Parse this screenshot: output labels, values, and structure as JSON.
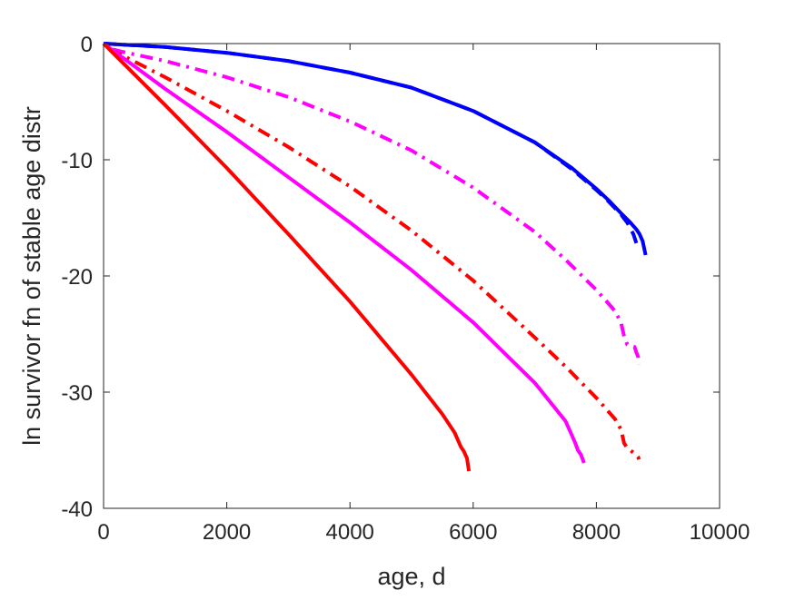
{
  "chart_data": {
    "type": "line",
    "title": "",
    "xlabel": "age, d",
    "ylabel": "ln survivor fn of stable age distr",
    "xlim": [
      0,
      10000
    ],
    "ylim": [
      -40,
      0
    ],
    "xticks": [
      0,
      2000,
      4000,
      6000,
      8000,
      10000
    ],
    "yticks": [
      0,
      -10,
      -20,
      -30,
      -40
    ],
    "xtick_labels": [
      "0",
      "2000",
      "4000",
      "6000",
      "8000",
      "10000"
    ],
    "ytick_labels": [
      "0",
      "-10",
      "-20",
      "-30",
      "-40"
    ],
    "grid": false,
    "legend": "none",
    "series": [
      {
        "color": "#0000ff",
        "dash": "dashed",
        "x": [
          0,
          1000,
          2000,
          3000,
          4000,
          5000,
          6000,
          7000,
          7600,
          8000,
          8200,
          8400,
          8500,
          8600,
          8650
        ],
        "y": [
          0,
          -0.3,
          -0.8,
          -1.5,
          -2.5,
          -3.8,
          -5.8,
          -8.5,
          -10.8,
          -12.6,
          -13.6,
          -14.7,
          -15.4,
          -16.4,
          -17.2
        ]
      },
      {
        "color": "#0000ff",
        "dash": "solid",
        "x": [
          0,
          500,
          1000,
          2000,
          3000,
          4000,
          5000,
          6000,
          7000,
          7600,
          8000,
          8200,
          8400,
          8550,
          8650,
          8700,
          8750,
          8800
        ],
        "y": [
          0,
          -0.15,
          -0.3,
          -0.8,
          -1.5,
          -2.5,
          -3.8,
          -5.8,
          -8.5,
          -10.7,
          -12.5,
          -13.5,
          -14.6,
          -15.4,
          -16.0,
          -16.4,
          -17.0,
          -18.2
        ]
      },
      {
        "color": "#ff00ff",
        "dash": "dashdot",
        "x": [
          150,
          300,
          1000,
          2000,
          3000,
          4000,
          5000,
          6000,
          7000,
          7500,
          8000,
          8300,
          8400,
          8450,
          8500,
          8550,
          8620,
          8650,
          8680,
          8690
        ],
        "y": [
          -0.5,
          -0.7,
          -1.5,
          -2.9,
          -4.6,
          -6.7,
          -9.2,
          -12.4,
          -16.2,
          -18.6,
          -21.2,
          -23.0,
          -24.0,
          -25.2,
          -25.9,
          -26.0,
          -26.1,
          -26.6,
          -27.0,
          -27.6
        ]
      },
      {
        "color": "#ff0000",
        "dash": "dashdot",
        "x": [
          100,
          300,
          1000,
          2000,
          3000,
          4000,
          5000,
          6000,
          7000,
          7500,
          8000,
          8300,
          8400,
          8450,
          8500,
          8550,
          8600,
          8650,
          8680,
          8690
        ],
        "y": [
          -0.5,
          -1.0,
          -2.9,
          -5.8,
          -8.9,
          -12.3,
          -16.1,
          -20.4,
          -25.3,
          -27.8,
          -30.5,
          -32.3,
          -33.2,
          -34.4,
          -34.8,
          -35.0,
          -35.2,
          -35.4,
          -35.6,
          -35.8
        ]
      },
      {
        "color": "#ff00ff",
        "dash": "solid",
        "x": [
          0,
          1000,
          2000,
          3000,
          4000,
          5000,
          6000,
          7000,
          7500,
          7650,
          7700,
          7750,
          7800
        ],
        "y": [
          0,
          -3.9,
          -7.6,
          -11.5,
          -15.4,
          -19.5,
          -24.0,
          -29.2,
          -32.5,
          -34.3,
          -35.0,
          -35.4,
          -36.1
        ]
      },
      {
        "color": "#ff0000",
        "dash": "solid",
        "x": [
          0,
          1000,
          2000,
          3000,
          4000,
          5000,
          5500,
          5700,
          5800,
          5850,
          5900,
          5930
        ],
        "y": [
          0,
          -5.3,
          -10.7,
          -16.4,
          -22.2,
          -28.5,
          -31.9,
          -33.5,
          -34.7,
          -35.1,
          -35.7,
          -36.8
        ]
      }
    ]
  }
}
